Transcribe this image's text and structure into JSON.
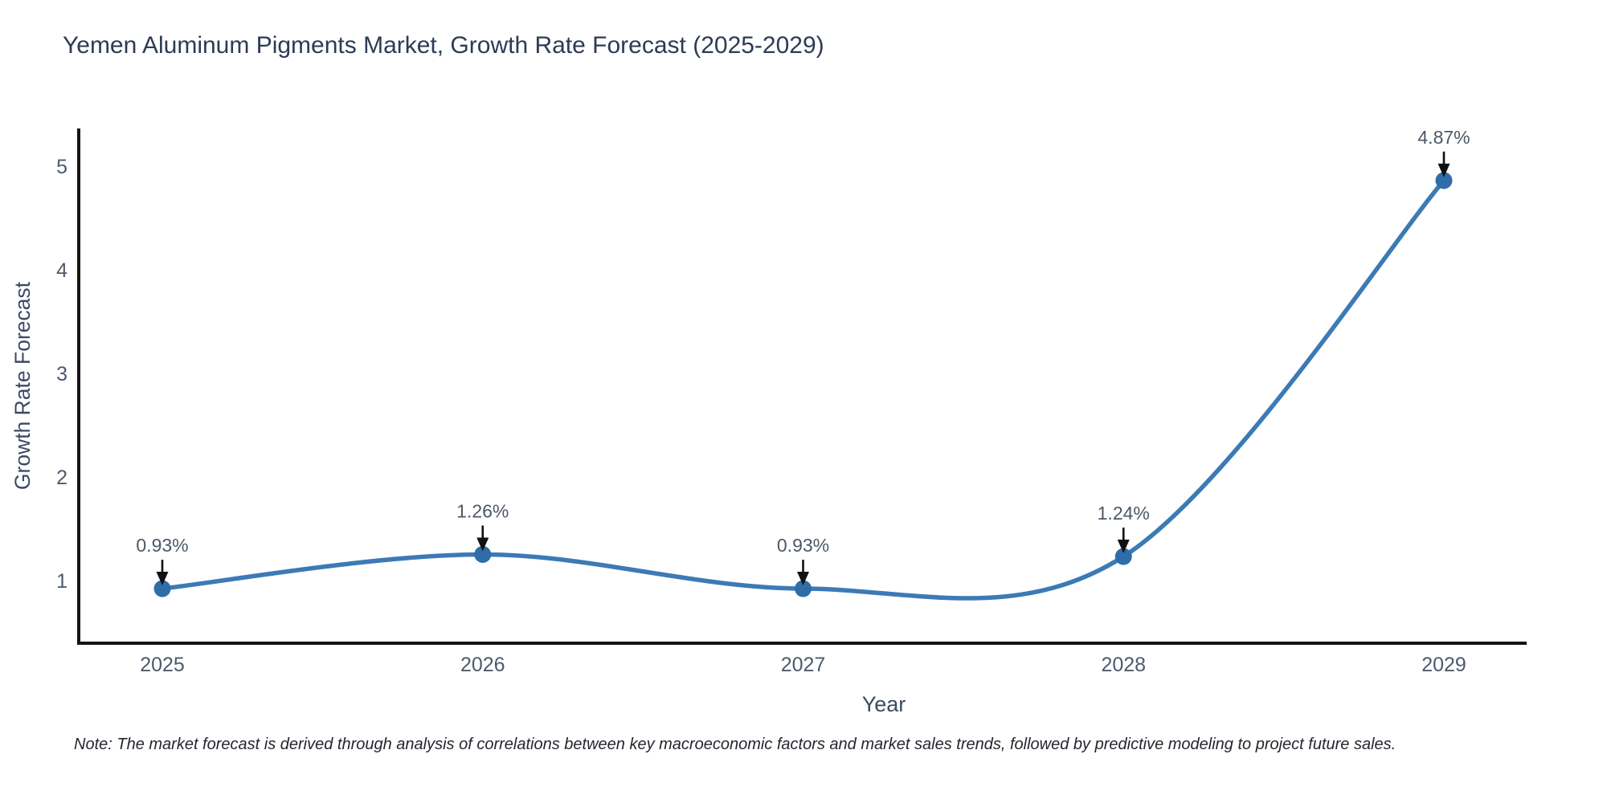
{
  "note": "Note: The market forecast is derived through analysis of correlations between key macroeconomic factors and market sales trends, followed by predictive modeling to project future sales.",
  "chart_data": {
    "type": "line",
    "title": "Yemen Aluminum Pigments Market, Growth Rate Forecast (2025-2029)",
    "xlabel": "Year",
    "ylabel": "Growth Rate Forecast",
    "x": [
      2025,
      2026,
      2027,
      2028,
      2029
    ],
    "series": [
      {
        "name": "Growth Rate Forecast",
        "values": [
          0.93,
          1.26,
          0.93,
          1.24,
          4.87
        ]
      }
    ],
    "point_labels": [
      "0.93%",
      "1.26%",
      "0.93%",
      "1.24%",
      "4.87%"
    ],
    "yticks": [
      1,
      2,
      3,
      4,
      5
    ],
    "ylim": [
      0.4,
      5.37
    ],
    "xlim": [
      2024.74,
      2029.26
    ],
    "grid": false,
    "legend": false,
    "line_shape": "spline",
    "annotations": "value labels with downward arrows above each point",
    "colors": {
      "line": "#3c7ab5",
      "marker": "#2e6da8",
      "axis": "#141414",
      "arrow": "#111111",
      "tick_text": "#4d5a6e",
      "axis_title_text": "#3c4a63",
      "annotation_text": "#4c5868"
    }
  }
}
